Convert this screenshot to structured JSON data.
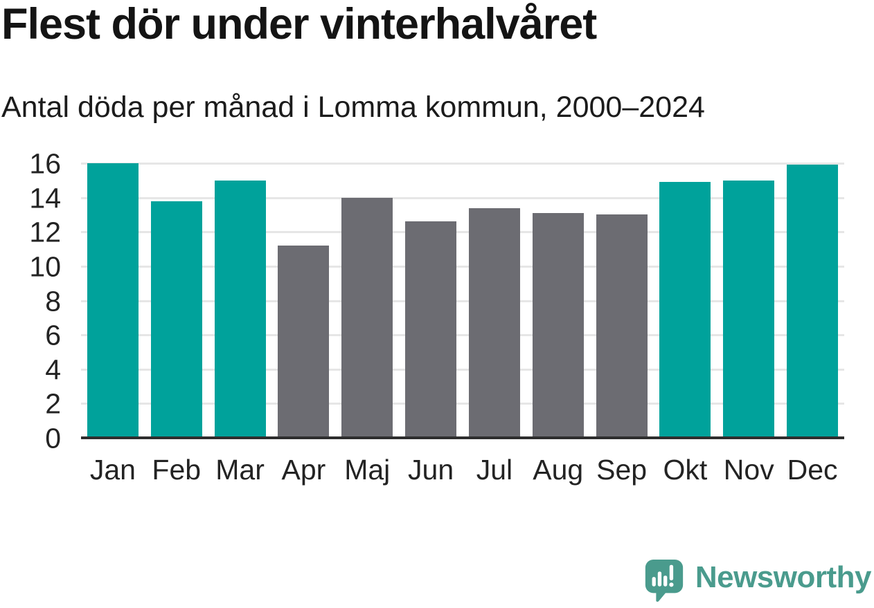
{
  "chart_data": {
    "type": "bar",
    "title": "Flest dör under vinterhalvåret",
    "subtitle": "Antal döda per månad i Lomma kommun, 2000–2024",
    "categories": [
      "Jan",
      "Feb",
      "Mar",
      "Apr",
      "Maj",
      "Jun",
      "Jul",
      "Aug",
      "Sep",
      "Okt",
      "Nov",
      "Dec"
    ],
    "values": [
      16.0,
      13.8,
      15.0,
      11.2,
      14.0,
      12.6,
      13.4,
      13.1,
      13.0,
      14.9,
      15.0,
      15.9
    ],
    "xlabel": "",
    "ylabel": "",
    "ylim": [
      0,
      16
    ],
    "yticks": [
      0,
      2,
      4,
      6,
      8,
      10,
      12,
      14,
      16
    ],
    "grid": true,
    "legend_position": "none",
    "bar_palette": [
      "winter",
      "winter",
      "winter",
      "summer",
      "summer",
      "summer",
      "summer",
      "summer",
      "summer",
      "winter",
      "winter",
      "winter"
    ],
    "colors": {
      "winter": "#00A29B",
      "summer": "#6C6C72",
      "gridline": "#E6E6E6",
      "axis": "#2E2E2E",
      "text": "#1B1B1B"
    }
  },
  "branding": {
    "wordmark": "Newsworthy",
    "logo_color": "#4A9B8D",
    "icon": "newsworthy-speech-bubble-chart-icon"
  }
}
